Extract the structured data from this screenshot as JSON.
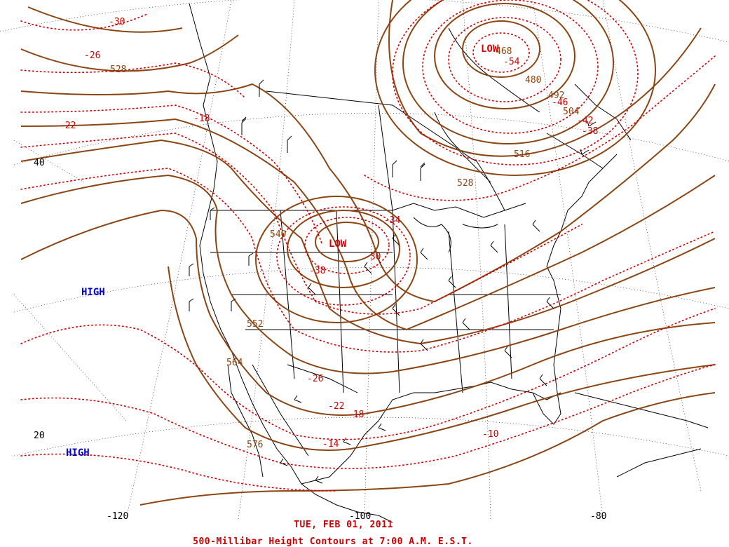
{
  "map": {
    "colors": {
      "height_contour": "#8b4513",
      "temp_contour": "#cc0000",
      "low": "#e00000",
      "high": "#0000cc",
      "geography": "#000000"
    },
    "date_caption": "TUE, FEB 01, 2011",
    "title_caption": "500-Millibar Height Contours at 7:00 A.M. E.S.T.",
    "latitude_labels": [
      "40",
      "20"
    ],
    "longitude_labels": [
      "-120",
      "-100",
      "-80"
    ],
    "pressure_systems": [
      {
        "type": "LOW",
        "label": "LOW"
      },
      {
        "type": "LOW",
        "label": "LOW"
      },
      {
        "type": "HIGH",
        "label": "HIGH"
      },
      {
        "type": "HIGH",
        "label": "HIGH"
      }
    ],
    "height_labels": [
      "528",
      "540",
      "552",
      "564",
      "576",
      "528",
      "516",
      "504",
      "492",
      "480",
      "468"
    ],
    "temperature_labels": [
      "-30",
      "-26",
      "-22",
      "-18",
      "-34",
      "-30",
      "-38",
      "-26",
      "-22",
      "-18",
      "-14",
      "-10",
      "-54",
      "-46",
      "-42",
      "-38"
    ]
  }
}
